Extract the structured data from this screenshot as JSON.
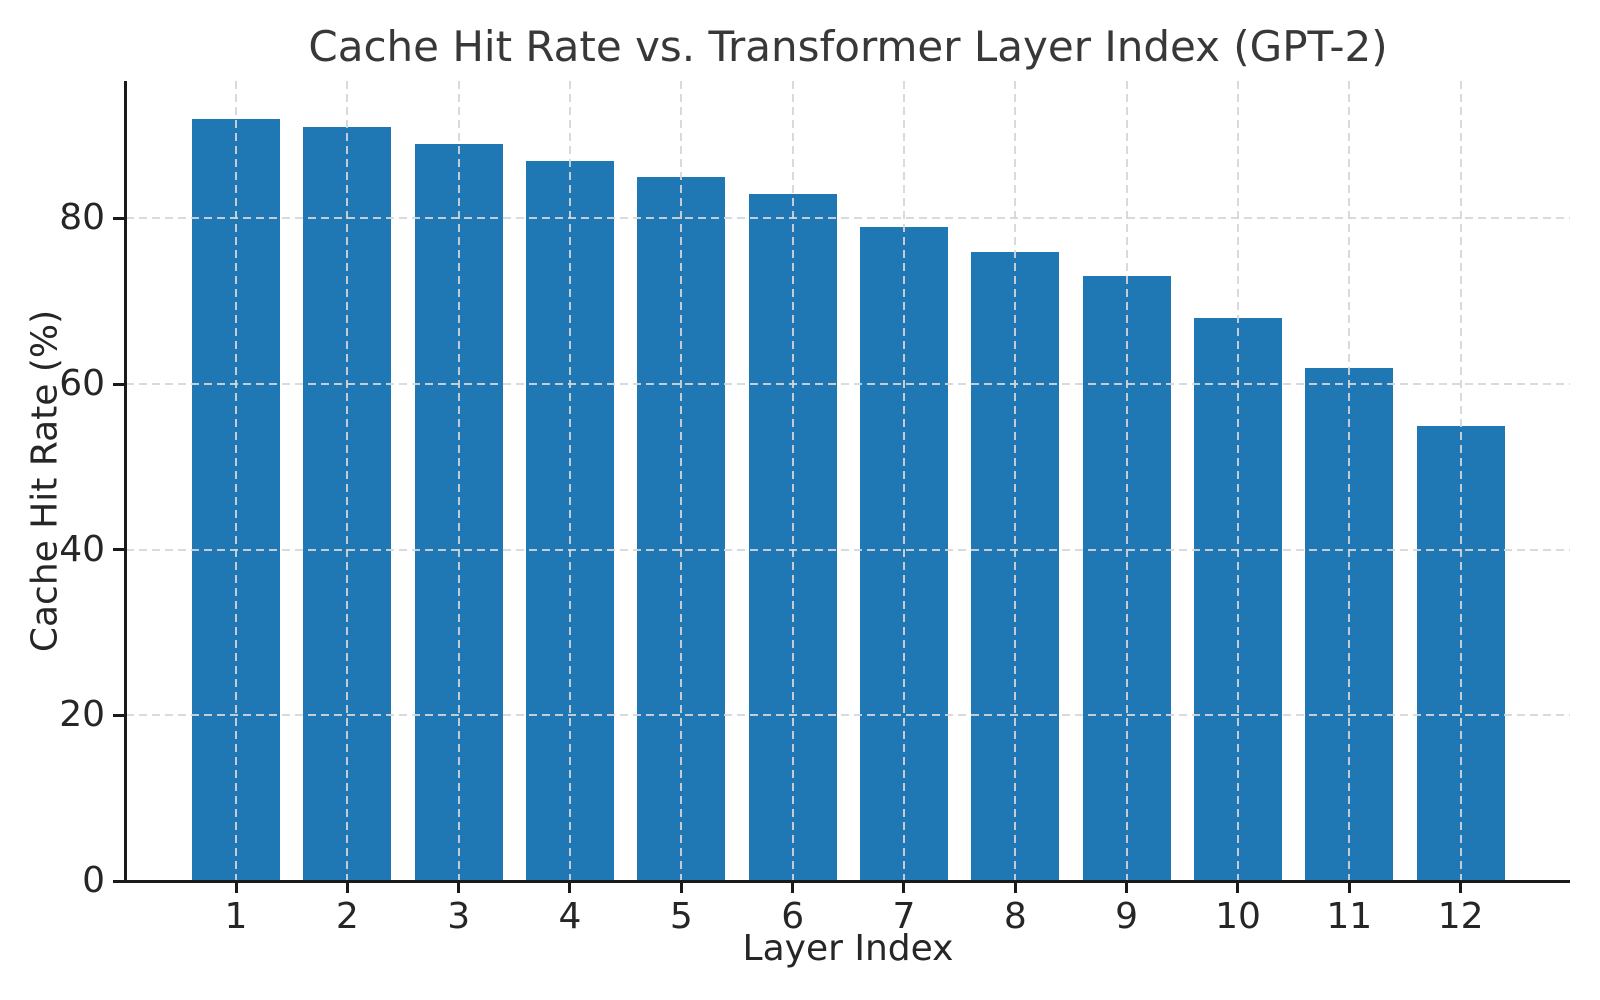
{
  "chart_data": {
    "type": "bar",
    "title": "Cache Hit Rate vs. Transformer Layer Index (GPT-2)",
    "xlabel": "Layer Index",
    "ylabel": "Cache Hit Rate (%)",
    "categories": [
      "1",
      "2",
      "3",
      "4",
      "5",
      "6",
      "7",
      "8",
      "9",
      "10",
      "11",
      "12"
    ],
    "values": [
      92,
      91,
      89,
      87,
      85,
      83,
      79,
      76,
      73,
      68,
      62,
      55
    ],
    "yticks": [
      0,
      20,
      40,
      60,
      80
    ],
    "ylim": [
      0,
      96.6
    ],
    "bar_color": "#1f77b4",
    "grid": {
      "style": "dashed",
      "color": "#d6d6d6",
      "vertical": true,
      "horizontal": true,
      "above_bars": true
    },
    "legend": "none",
    "background": "#ffffff",
    "spines": [
      "left",
      "bottom"
    ]
  }
}
